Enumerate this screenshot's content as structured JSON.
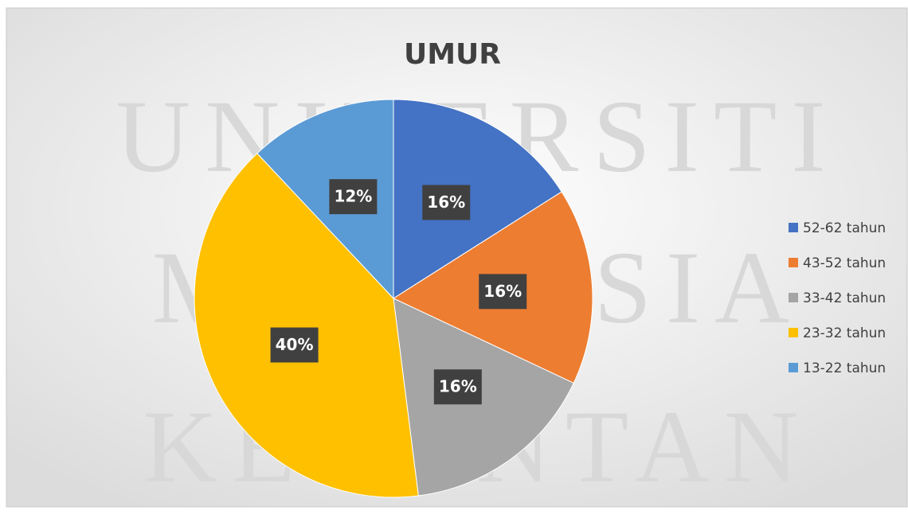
{
  "chart_data": {
    "type": "pie",
    "title": "UMUR",
    "categories": [
      "52-62 tahun",
      "43-52 tahun",
      "33-42 tahun",
      "23-32 tahun",
      "13-22 tahun"
    ],
    "values": [
      16,
      16,
      16,
      40,
      12
    ],
    "value_labels": [
      "16%",
      "16%",
      "16%",
      "40%",
      "12%"
    ],
    "colors": [
      "#4472c4",
      "#ed7d31",
      "#a5a5a5",
      "#ffc000",
      "#5b9bd5"
    ],
    "legend": "right"
  },
  "watermark": [
    "UNIVERSITI",
    "MALAYSIA",
    "KELANTAN"
  ]
}
